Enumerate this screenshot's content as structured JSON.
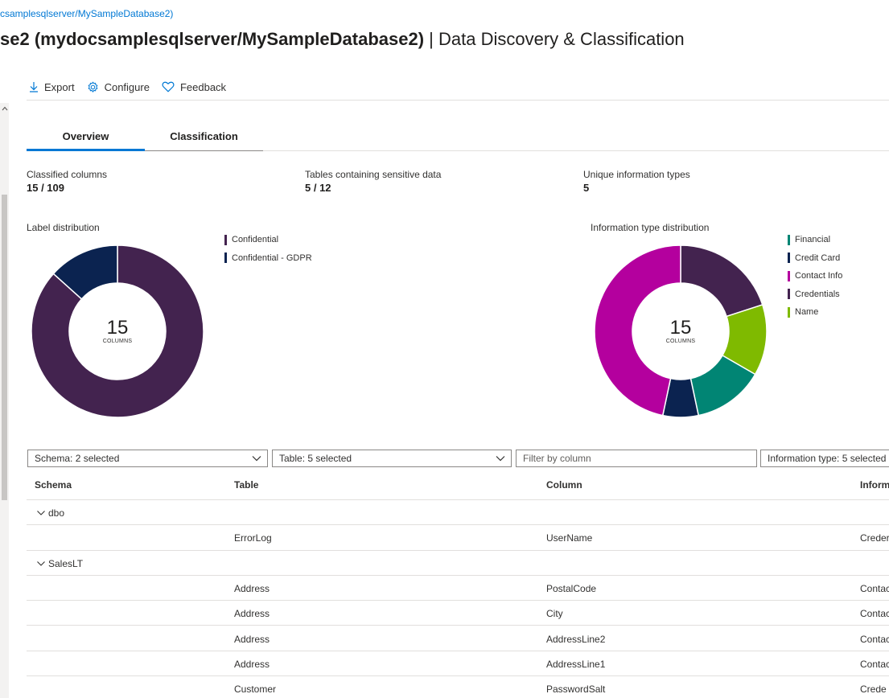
{
  "breadcrumb": "csamplesqlserver/MySampleDatabase2)",
  "title": {
    "main": "se2 (mydocsamplesqlserver/MySampleDatabase2)",
    "separator": " | ",
    "sub": "Data Discovery & Classification"
  },
  "toolbar": {
    "export_label": "Export",
    "configure_label": "Configure",
    "feedback_label": "Feedback"
  },
  "tabs": [
    {
      "label": "Overview",
      "active": true
    },
    {
      "label": "Classification",
      "active": false
    }
  ],
  "stats": [
    {
      "label": "Classified columns",
      "value": "15 / 109"
    },
    {
      "label": "Tables containing sensitive data",
      "value": "5 / 12"
    },
    {
      "label": "Unique information types",
      "value": "5"
    }
  ],
  "label_chart": {
    "title": "Label distribution",
    "center_value": "15",
    "center_unit": "COLUMNS",
    "legend": [
      {
        "name": "Confidential",
        "color": "#43234f"
      },
      {
        "name": "Confidential - GDPR",
        "color": "#0b2350"
      }
    ]
  },
  "info_chart": {
    "title": "Information type distribution",
    "center_value": "15",
    "center_unit": "COLUMNS",
    "legend": [
      {
        "name": "Financial",
        "color": "#018574"
      },
      {
        "name": "Credit Card",
        "color": "#0b2350"
      },
      {
        "name": "Contact Info",
        "color": "#b4009e"
      },
      {
        "name": "Credentials",
        "color": "#43234f"
      },
      {
        "name": "Name",
        "color": "#7fba00"
      }
    ]
  },
  "chart_data": [
    {
      "type": "pie",
      "title": "Label distribution",
      "categories": [
        "Confidential",
        "Confidential - GDPR"
      ],
      "values": [
        13,
        2
      ],
      "colors": [
        "#43234f",
        "#0b2350"
      ]
    },
    {
      "type": "pie",
      "title": "Information type distribution",
      "categories": [
        "Credentials",
        "Name",
        "Financial",
        "Credit Card",
        "Contact Info"
      ],
      "values": [
        3,
        2,
        2,
        1,
        7
      ],
      "colors": [
        "#43234f",
        "#7fba00",
        "#018574",
        "#0b2350",
        "#b4009e"
      ]
    }
  ],
  "filters": {
    "schema": "Schema: 2 selected",
    "table": "Table: 5 selected",
    "column_placeholder": "Filter by column",
    "info_type": "Information type: 5 selected"
  },
  "table": {
    "headers": {
      "schema": "Schema",
      "table": "Table",
      "column": "Column",
      "info": "Inform"
    },
    "rows": [
      {
        "group": "dbo"
      },
      {
        "table": "ErrorLog",
        "column": "UserName",
        "info": "Creder"
      },
      {
        "group": "SalesLT"
      },
      {
        "table": "Address",
        "column": "PostalCode",
        "info": "Contac"
      },
      {
        "table": "Address",
        "column": "City",
        "info": "Contac"
      },
      {
        "table": "Address",
        "column": "AddressLine2",
        "info": "Contac"
      },
      {
        "table": "Address",
        "column": "AddressLine1",
        "info": "Contac"
      },
      {
        "table": "Customer",
        "column": "PasswordSalt",
        "info": "Crede"
      }
    ]
  }
}
